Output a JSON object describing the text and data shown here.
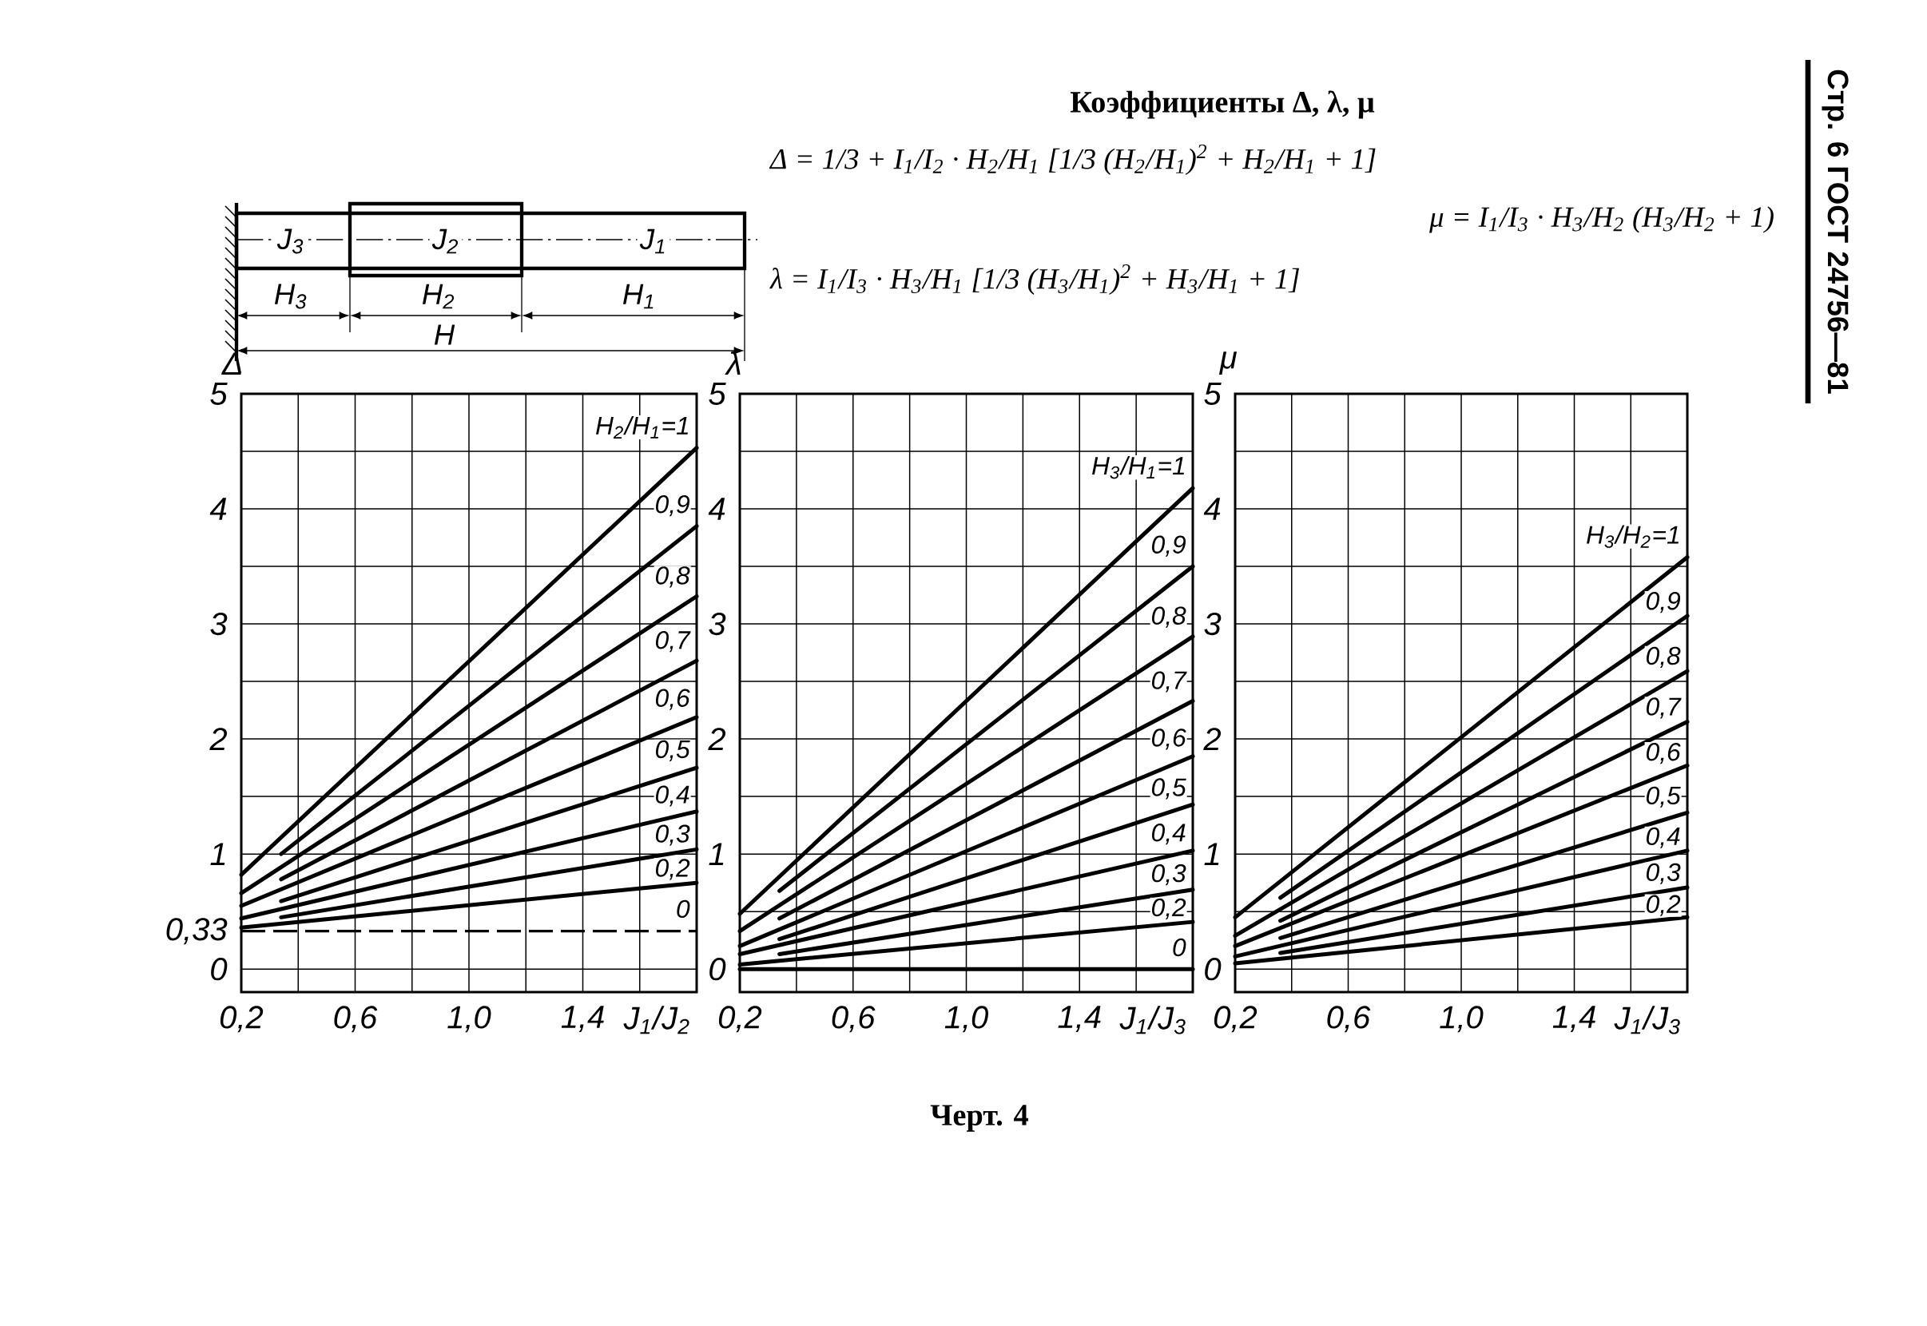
{
  "chart_data": [
    {
      "type": "other",
      "title": "Коэффициенты Δ, λ, μ",
      "annotations": [
        "Δ = 1/3 + I$_{1}$/I$_{2}$ · H$_{2}$/H$_{1}$ [1/3 (H$_{2}$/H$_{1}$)$^{2}$ + H$_{2}$/H$_{1}$ + 1]",
        "λ = I$_{1}$/I$_{3}$ · H$_{3}$/H$_{1}$ [1/3 (H$_{3}$/H$_{1}$)$^{2}$ + H$_{3}$/H$_{1}$ + 1]",
        "μ = I$_{1}$/I$_{3}$ · H$_{3}$/H$_{2}$ (H$_{3}$/H$_{2}$ + 1)",
        "J$_{3}$",
        "J$_{2}$",
        "J$_{1}$",
        "H$_{3}$",
        "H$_{2}$",
        "H$_{1}$",
        "H",
        "Стр. 6 ГОСТ 24756—81",
        "Черт. 4"
      ]
    },
    {
      "type": "line",
      "ylabel": "Δ",
      "xlabel": "J$_{1}$/J$_{2}$",
      "xlim": [
        0.2,
        1.8
      ],
      "ylim": [
        -0.2,
        5
      ],
      "grid": true,
      "xticks": [
        {
          "value": 0.2,
          "label": "0,2"
        },
        {
          "value": 0.4,
          "label": null
        },
        {
          "value": 0.6,
          "label": "0,6"
        },
        {
          "value": 0.8,
          "label": null
        },
        {
          "value": 1.0,
          "label": "1,0"
        },
        {
          "value": 1.2,
          "label": null
        },
        {
          "value": 1.4,
          "label": "1,4"
        },
        {
          "value": 1.6,
          "label": null
        },
        {
          "value": 1.8,
          "label": null
        }
      ],
      "yticks": [
        0,
        {
          "value": 0.33,
          "label": "0,33"
        },
        1,
        {
          "value": 1.5,
          "label": null
        },
        2,
        {
          "value": 2.5,
          "label": null
        },
        3,
        {
          "value": 3.5,
          "label": null
        },
        4,
        {
          "value": 4.5,
          "label": null
        },
        5
      ],
      "ref_lines": [
        {
          "axis": "y",
          "value": 0.33,
          "label": "0",
          "line_style": "dashed"
        }
      ],
      "series": [
        {
          "name": "H$_{2}$/H$_{1}$=1",
          "color": "#000000",
          "x": [
            0.2,
            1.8
          ],
          "values": [
            0.82,
            4.53
          ]
        },
        {
          "name": "0,9",
          "color": "#000000",
          "x": [
            0.34,
            1.8
          ],
          "values": [
            1.0,
            3.85
          ]
        },
        {
          "name": "0,8",
          "color": "#000000",
          "x": [
            0.2,
            1.8
          ],
          "values": [
            0.66,
            3.24
          ]
        },
        {
          "name": "0,7",
          "color": "#000000",
          "x": [
            0.34,
            1.8
          ],
          "values": [
            0.78,
            2.68
          ]
        },
        {
          "name": "0,6",
          "color": "#000000",
          "x": [
            0.2,
            1.8
          ],
          "values": [
            0.55,
            2.19
          ]
        },
        {
          "name": "0,5",
          "color": "#000000",
          "x": [
            0.34,
            1.8
          ],
          "values": [
            0.59,
            1.75
          ]
        },
        {
          "name": "0,4",
          "color": "#000000",
          "x": [
            0.2,
            1.8
          ],
          "values": [
            0.44,
            1.37
          ]
        },
        {
          "name": "0,3",
          "color": "#000000",
          "x": [
            0.34,
            1.8
          ],
          "values": [
            0.45,
            1.04
          ]
        },
        {
          "name": "0,2",
          "color": "#000000",
          "x": [
            0.2,
            1.8
          ],
          "values": [
            0.36,
            0.75
          ]
        }
      ]
    },
    {
      "type": "line",
      "ylabel": "λ",
      "xlabel": "J$_{1}$/J$_{3}$",
      "xlim": [
        0.2,
        1.8
      ],
      "ylim": [
        -0.2,
        5
      ],
      "grid": true,
      "xticks": [
        {
          "value": 0.2,
          "label": "0,2"
        },
        {
          "value": 0.4,
          "label": null
        },
        {
          "value": 0.6,
          "label": "0,6"
        },
        {
          "value": 0.8,
          "label": null
        },
        {
          "value": 1.0,
          "label": "1,0"
        },
        {
          "value": 1.2,
          "label": null
        },
        {
          "value": 1.4,
          "label": "1,4"
        },
        {
          "value": 1.6,
          "label": null
        },
        {
          "value": 1.8,
          "label": null
        }
      ],
      "yticks": [
        0,
        {
          "value": 0.5,
          "label": null
        },
        1,
        {
          "value": 1.5,
          "label": null
        },
        2,
        {
          "value": 2.5,
          "label": null
        },
        3,
        {
          "value": 3.5,
          "label": null
        },
        4,
        {
          "value": 4.5,
          "label": null
        },
        5
      ],
      "series": [
        {
          "name": "H$_{3}$/H$_{1}$=1",
          "color": "#000000",
          "x": [
            0.2,
            1.8
          ],
          "values": [
            0.48,
            4.18
          ]
        },
        {
          "name": "0,9",
          "color": "#000000",
          "x": [
            0.34,
            1.8
          ],
          "values": [
            0.68,
            3.5
          ]
        },
        {
          "name": "0,8",
          "color": "#000000",
          "x": [
            0.2,
            1.8
          ],
          "values": [
            0.33,
            2.89
          ]
        },
        {
          "name": "0,7",
          "color": "#000000",
          "x": [
            0.34,
            1.8
          ],
          "values": [
            0.44,
            2.33
          ]
        },
        {
          "name": "0,6",
          "color": "#000000",
          "x": [
            0.2,
            1.8
          ],
          "values": [
            0.2,
            1.85
          ]
        },
        {
          "name": "0,5",
          "color": "#000000",
          "x": [
            0.34,
            1.8
          ],
          "values": [
            0.26,
            1.43
          ]
        },
        {
          "name": "0,4",
          "color": "#000000",
          "x": [
            0.2,
            1.8
          ],
          "values": [
            0.13,
            1.03
          ]
        },
        {
          "name": "0,3",
          "color": "#000000",
          "x": [
            0.34,
            1.8
          ],
          "values": [
            0.13,
            0.69
          ]
        },
        {
          "name": "0,2",
          "color": "#000000",
          "x": [
            0.2,
            1.8
          ],
          "values": [
            0.04,
            0.41
          ]
        },
        {
          "name": "0",
          "color": "#000000",
          "x": [
            0.2,
            1.8
          ],
          "values": [
            0,
            0
          ]
        }
      ]
    },
    {
      "type": "line",
      "ylabel": "μ",
      "xlabel": "J$_{1}$/J$_{3}$",
      "xlim": [
        0.2,
        1.8
      ],
      "ylim": [
        -0.2,
        5
      ],
      "grid": true,
      "xticks": [
        {
          "value": 0.2,
          "label": "0,2"
        },
        {
          "value": 0.4,
          "label": null
        },
        {
          "value": 0.6,
          "label": "0,6"
        },
        {
          "value": 0.8,
          "label": null
        },
        {
          "value": 1.0,
          "label": "1,0"
        },
        {
          "value": 1.2,
          "label": null
        },
        {
          "value": 1.4,
          "label": "1,4"
        },
        {
          "value": 1.6,
          "label": null
        },
        {
          "value": 1.8,
          "label": null
        }
      ],
      "yticks": [
        0,
        {
          "value": 0.5,
          "label": null
        },
        1,
        {
          "value": 1.5,
          "label": null
        },
        2,
        {
          "value": 2.5,
          "label": null
        },
        3,
        {
          "value": 3.5,
          "label": null
        },
        4,
        {
          "value": 4.5,
          "label": null
        },
        5
      ],
      "series": [
        {
          "name": "H$_{3}$/H$_{2}$=1",
          "color": "#000000",
          "x": [
            0.2,
            1.8
          ],
          "values": [
            0.45,
            3.58
          ]
        },
        {
          "name": "0,9",
          "color": "#000000",
          "x": [
            0.36,
            1.8
          ],
          "values": [
            0.62,
            3.07
          ]
        },
        {
          "name": "0,8",
          "color": "#000000",
          "x": [
            0.2,
            1.8
          ],
          "values": [
            0.29,
            2.59
          ]
        },
        {
          "name": "0,7",
          "color": "#000000",
          "x": [
            0.36,
            1.8
          ],
          "values": [
            0.42,
            2.15
          ]
        },
        {
          "name": "0,6",
          "color": "#000000",
          "x": [
            0.2,
            1.8
          ],
          "values": [
            0.2,
            1.77
          ]
        },
        {
          "name": "0,5",
          "color": "#000000",
          "x": [
            0.36,
            1.8
          ],
          "values": [
            0.27,
            1.36
          ]
        },
        {
          "name": "0,4",
          "color": "#000000",
          "x": [
            0.2,
            1.8
          ],
          "values": [
            0.11,
            1.03
          ]
        },
        {
          "name": "0,3",
          "color": "#000000",
          "x": [
            0.36,
            1.8
          ],
          "values": [
            0.14,
            0.71
          ]
        },
        {
          "name": "0,2",
          "color": "#000000",
          "x": [
            0.2,
            1.8
          ],
          "values": [
            0.05,
            0.45
          ]
        }
      ]
    }
  ]
}
